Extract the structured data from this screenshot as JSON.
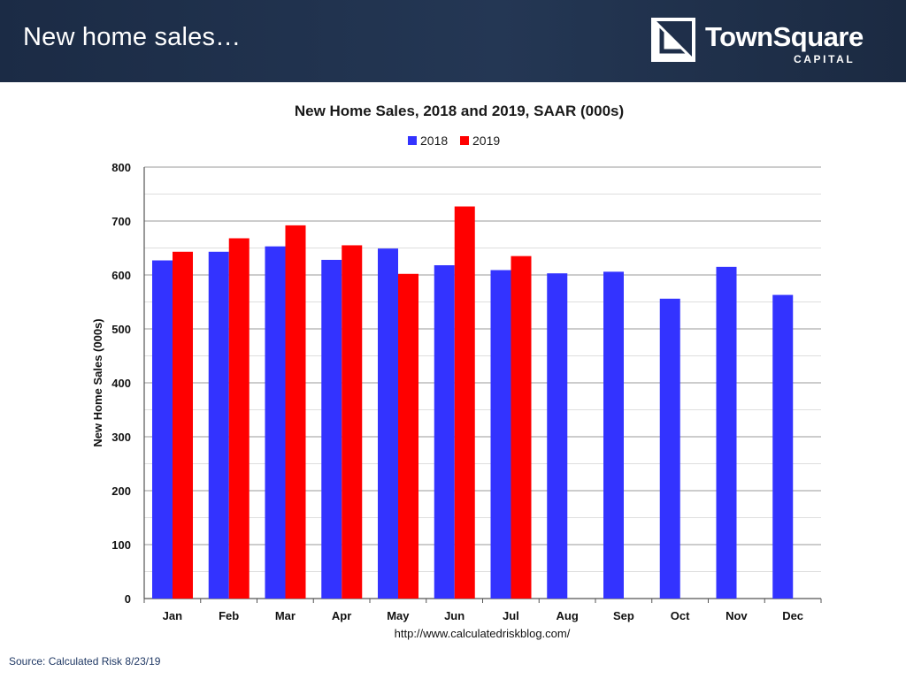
{
  "header": {
    "title": "New home sales…",
    "logo": {
      "name": "TownSquare",
      "sub": "CAPITAL",
      "icon": "townsquare-logo-icon"
    }
  },
  "footer": {
    "source": "Source: Calculated Risk 8/23/19"
  },
  "colors": {
    "series_2018": "#3333ff",
    "series_2019": "#ff0000",
    "header_bg": "#1f2f4a"
  },
  "chart_data": {
    "type": "bar",
    "title": "New Home Sales,  2018 and 2019, SAAR (000s)",
    "ylabel": "New Home Sales (000s)",
    "xlabel": "",
    "ylim": [
      0,
      800
    ],
    "yticks": [
      0,
      100,
      200,
      300,
      400,
      500,
      600,
      700,
      800
    ],
    "grid": true,
    "legend": "top-center",
    "source_note": "http://www.calculatedriskblog.com/",
    "categories": [
      "Jan",
      "Feb",
      "Mar",
      "Apr",
      "May",
      "Jun",
      "Jul",
      "Aug",
      "Sep",
      "Oct",
      "Nov",
      "Dec"
    ],
    "series": [
      {
        "name": "2018",
        "values": [
          627,
          643,
          653,
          628,
          649,
          618,
          609,
          603,
          606,
          556,
          615,
          563
        ]
      },
      {
        "name": "2019",
        "values": [
          643,
          668,
          692,
          655,
          602,
          727,
          635,
          null,
          null,
          null,
          null,
          null
        ]
      }
    ]
  }
}
